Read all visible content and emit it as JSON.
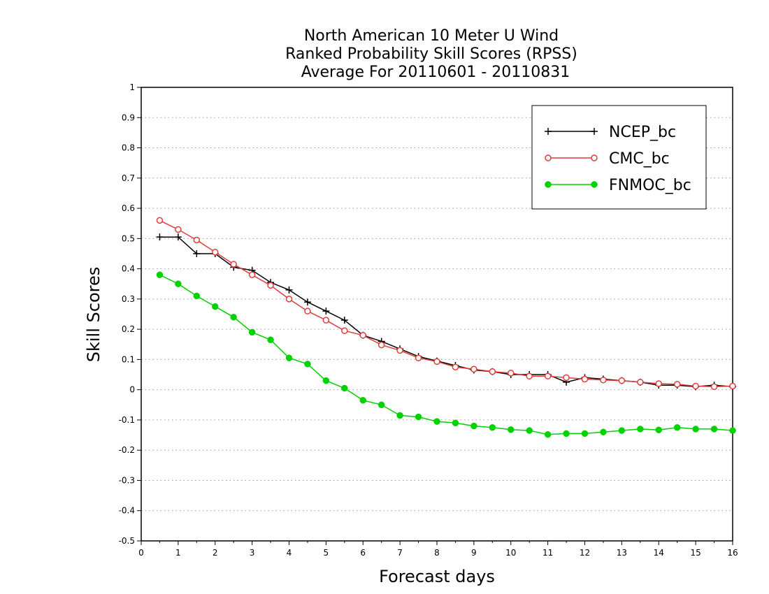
{
  "chart_data": {
    "type": "line",
    "title_lines": [
      "North American 10 Meter U Wind",
      "Ranked Probability Skill Scores (RPSS)",
      "Average For 20110601 - 20110831"
    ],
    "xlabel": "Forecast days",
    "ylabel": "Skill Scores",
    "xlim": [
      0,
      16
    ],
    "ylim": [
      -0.5,
      1
    ],
    "x_ticks": [
      "0",
      "1",
      "2",
      "3",
      "4",
      "5",
      "6",
      "7",
      "8",
      "9",
      "10",
      "11",
      "12",
      "13",
      "14",
      "15",
      "16"
    ],
    "y_ticks": [
      "1",
      "0.9",
      "0.8",
      "0.7",
      "0.6",
      "0.5",
      "0.4",
      "0.3",
      "0.2",
      "0.1",
      "0",
      "-0.1",
      "-0.2",
      "-0.3",
      "-0.4",
      "-0.5"
    ],
    "grid": "horizontal dotted",
    "legend_position": "top-right",
    "x": [
      0.5,
      1,
      1.5,
      2,
      2.5,
      3,
      3.5,
      4,
      4.5,
      5,
      5.5,
      6,
      6.5,
      7,
      7.5,
      8,
      8.5,
      9,
      9.5,
      10,
      10.5,
      11,
      11.5,
      12,
      12.5,
      13,
      13.5,
      14,
      14.5,
      15,
      15.5,
      16
    ],
    "series": [
      {
        "name": "NCEP_bc",
        "color": "#000000",
        "marker": "plus",
        "values": [
          0.505,
          0.505,
          0.45,
          0.45,
          0.405,
          0.395,
          0.355,
          0.33,
          0.29,
          0.26,
          0.23,
          0.18,
          0.16,
          0.135,
          0.11,
          0.095,
          0.08,
          0.065,
          0.06,
          0.05,
          0.05,
          0.05,
          0.025,
          0.04,
          0.035,
          0.03,
          0.025,
          0.015,
          0.015,
          0.01,
          0.015,
          0.01
        ]
      },
      {
        "name": "CMC_bc",
        "color": "#e03c3c",
        "marker": "open-circle",
        "values": [
          0.56,
          0.53,
          0.495,
          0.455,
          0.415,
          0.38,
          0.345,
          0.3,
          0.26,
          0.23,
          0.195,
          0.18,
          0.148,
          0.13,
          0.105,
          0.093,
          0.075,
          0.068,
          0.06,
          0.055,
          0.045,
          0.045,
          0.04,
          0.035,
          0.032,
          0.03,
          0.025,
          0.02,
          0.018,
          0.012,
          0.01,
          0.012
        ]
      },
      {
        "name": "FNMOC_bc",
        "color": "#00d200",
        "marker": "filled-circle",
        "values": [
          0.38,
          0.35,
          0.31,
          0.275,
          0.24,
          0.19,
          0.165,
          0.105,
          0.085,
          0.03,
          0.005,
          -0.035,
          -0.05,
          -0.085,
          -0.09,
          -0.105,
          -0.11,
          -0.12,
          -0.125,
          -0.132,
          -0.135,
          -0.148,
          -0.145,
          -0.145,
          -0.14,
          -0.135,
          -0.13,
          -0.133,
          -0.125,
          -0.13,
          -0.13,
          -0.135
        ]
      }
    ]
  }
}
